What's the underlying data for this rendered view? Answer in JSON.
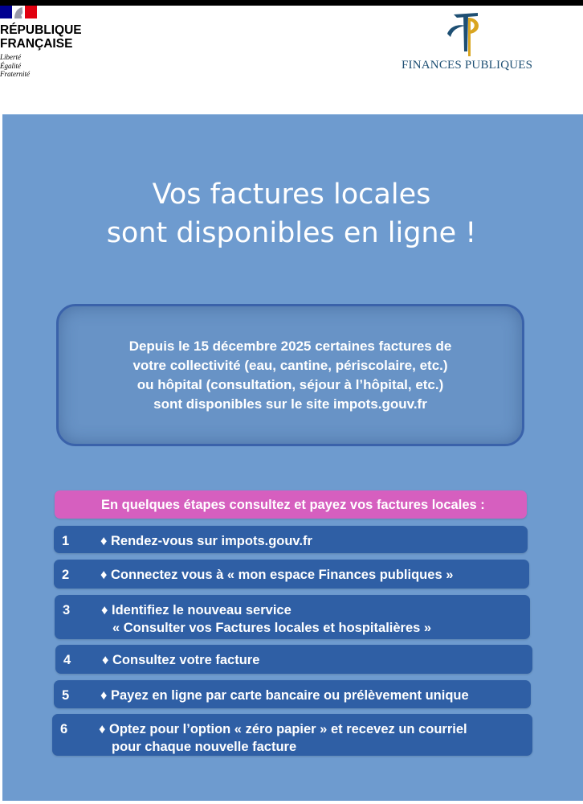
{
  "header": {
    "republique_line1": "RÉPUBLIQUE",
    "republique_line2": "FRANÇAISE",
    "motto": [
      "Liberté",
      "Égalité",
      "Fraternité"
    ],
    "finances_logo_text": "FINANCES PUBLIQUES"
  },
  "poster": {
    "title_line1": "Vos factures locales",
    "title_line2": "sont disponibles en ligne !",
    "callout_lines": [
      "Depuis le 15 décembre 2025 certaines factures de",
      "votre collectivité (eau, cantine, périscolaire, etc.)",
      "ou hôpital (consultation, séjour à l’hôpital, etc.)",
      "sont disponibles sur le site impots.gouv.fr"
    ],
    "steps_header": "En quelques étapes consultez et payez vos factures locales :",
    "steps": [
      {
        "num": "1",
        "line1": "♦ Rendez-vous sur impots.gouv.fr",
        "line2": ""
      },
      {
        "num": "2",
        "line1": "♦ Connectez vous à « mon espace Finances publiques »",
        "line2": ""
      },
      {
        "num": "3",
        "line1": "♦ Identifiez le nouveau service",
        "line2": "« Consulter vos Factures locales et hospitalières »"
      },
      {
        "num": "4",
        "line1": "♦ Consultez votre facture",
        "line2": ""
      },
      {
        "num": "5",
        "line1": "♦ Payez en ligne par carte bancaire ou prélèvement unique",
        "line2": ""
      },
      {
        "num": "6",
        "line1": "♦ Optez pour l’option « zéro papier » et recevez un courriel",
        "line2": "pour chaque nouvelle facture"
      }
    ]
  },
  "colors": {
    "panel": "#6e9bcf",
    "step_bar": "#2f5fa5",
    "header_bar": "#d65fbf",
    "callout_border": "#3a62aa",
    "logo_blue": "#1e4f73",
    "logo_gold": "#d9a520"
  }
}
